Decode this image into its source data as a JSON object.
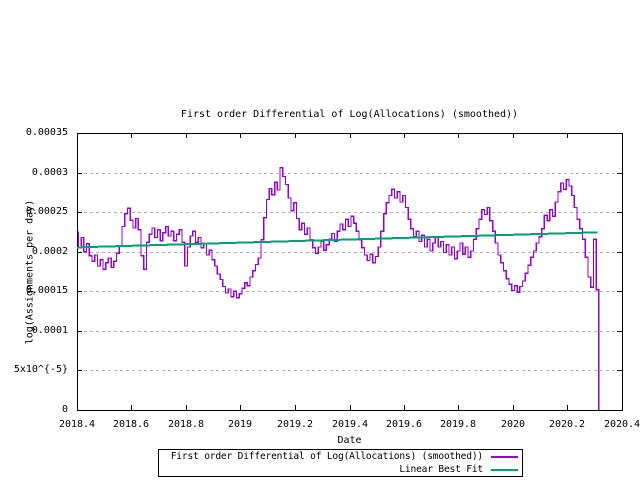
{
  "title": "First order Differential of Log(Allocations) (smoothed))",
  "axes": {
    "xlabel": "Date",
    "ylabel": "log(Assignments per day)",
    "x_tick_labels": [
      "2018.4",
      "2018.6",
      "2018.8",
      "2019",
      "2019.2",
      "2019.4",
      "2019.6",
      "2019.8",
      "2020",
      "2020.2",
      "2020.4"
    ],
    "x_tick_values": [
      2018.4,
      2018.6,
      2018.8,
      2019,
      2019.2,
      2019.4,
      2019.6,
      2019.8,
      2020,
      2020.2,
      2020.4
    ],
    "y_tick_labels": [
      "0",
      "5x10^{-5}",
      "0.0001",
      "0.00015",
      "0.0002",
      "0.00025",
      "0.0003",
      "0.00035"
    ],
    "y_tick_values": [
      0,
      5e-05,
      0.0001,
      0.00015,
      0.0002,
      0.00025,
      0.0003,
      0.00035
    ]
  },
  "legend": {
    "entries": [
      {
        "label": "First order Differential of Log(Allocations) (smoothed))",
        "color": "#9400D3"
      },
      {
        "label": "Linear Best Fit",
        "color": "#009E73"
      }
    ]
  },
  "colors": {
    "grid": "#b2b2b2",
    "border": "#000000",
    "series1": "#9400D3",
    "series2": "#009E73"
  },
  "chart_data": {
    "type": "line",
    "title": "First order Differential of Log(Allocations) (smoothed))",
    "xlabel": "Date",
    "ylabel": "log(Assignments per day)",
    "xlim": [
      2018.4,
      2020.4
    ],
    "ylim": [
      0,
      0.00035
    ],
    "grid": "horizontal-dashed-on-y-ticks",
    "legend_position": "below-plot-boxed",
    "series": [
      {
        "name": "First order Differential of Log(Allocations) (smoothed))",
        "color": "#9400D3",
        "style": "histeps",
        "x_start": 2018.4,
        "x_step": 0.01,
        "drop_to_zero_at_end": true,
        "values": [
          0.000225,
          0.000205,
          0.000218,
          0.0002,
          0.00021,
          0.000195,
          0.000188,
          0.000196,
          0.000182,
          0.00019,
          0.000178,
          0.000186,
          0.000192,
          0.00018,
          0.000188,
          0.000198,
          0.000208,
          0.000232,
          0.000248,
          0.000255,
          0.00024,
          0.00023,
          0.000242,
          0.000228,
          0.000195,
          0.000178,
          0.000212,
          0.000222,
          0.00023,
          0.000218,
          0.000228,
          0.000214,
          0.000224,
          0.000232,
          0.00022,
          0.000226,
          0.000214,
          0.000222,
          0.000228,
          0.000212,
          0.000182,
          0.000206,
          0.00022,
          0.000226,
          0.000212,
          0.000218,
          0.000205,
          0.00021,
          0.000196,
          0.000202,
          0.00019,
          0.000182,
          0.000172,
          0.000165,
          0.000156,
          0.000148,
          0.000153,
          0.000143,
          0.00015,
          0.000142,
          0.000147,
          0.000154,
          0.000161,
          0.000157,
          0.000168,
          0.000176,
          0.000184,
          0.000192,
          0.000215,
          0.000243,
          0.000266,
          0.00028,
          0.000272,
          0.000288,
          0.000278,
          0.000306,
          0.000295,
          0.000285,
          0.000268,
          0.000252,
          0.000262,
          0.000242,
          0.000228,
          0.000236,
          0.000222,
          0.00023,
          0.000215,
          0.000205,
          0.000198,
          0.000206,
          0.000213,
          0.000202,
          0.000209,
          0.000216,
          0.000223,
          0.000213,
          0.000226,
          0.000235,
          0.000228,
          0.000241,
          0.000232,
          0.000245,
          0.000236,
          0.000226,
          0.000215,
          0.000205,
          0.000196,
          0.000189,
          0.000197,
          0.000186,
          0.000194,
          0.000206,
          0.000226,
          0.000248,
          0.000262,
          0.000271,
          0.000279,
          0.000268,
          0.000276,
          0.000263,
          0.000271,
          0.000256,
          0.000241,
          0.000229,
          0.000219,
          0.000226,
          0.000213,
          0.000221,
          0.000206,
          0.000216,
          0.000201,
          0.000211,
          0.000219,
          0.000206,
          0.000213,
          0.000199,
          0.000209,
          0.000196,
          0.000206,
          0.000191,
          0.000201,
          0.000211,
          0.000197,
          0.000206,
          0.000193,
          0.000201,
          0.000216,
          0.000229,
          0.000241,
          0.000253,
          0.000247,
          0.000256,
          0.000239,
          0.000226,
          0.000211,
          0.000196,
          0.000186,
          0.000176,
          0.000166,
          0.000159,
          0.000151,
          0.000157,
          0.000149,
          0.000156,
          0.000163,
          0.000173,
          0.000183,
          0.000193,
          0.000201,
          0.000211,
          0.000219,
          0.000229,
          0.000246,
          0.000239,
          0.000253,
          0.000245,
          0.000263,
          0.000276,
          0.000287,
          0.000279,
          0.000291,
          0.000283,
          0.000271,
          0.000256,
          0.000241,
          0.000229,
          0.000216,
          0.000193,
          0.000168,
          0.000155,
          0.000216,
          0.000152
        ]
      },
      {
        "name": "Linear Best Fit",
        "color": "#009E73",
        "style": "line",
        "points": [
          [
            2018.4,
            0.0002055
          ],
          [
            2020.31,
            0.0002245
          ]
        ]
      }
    ]
  }
}
